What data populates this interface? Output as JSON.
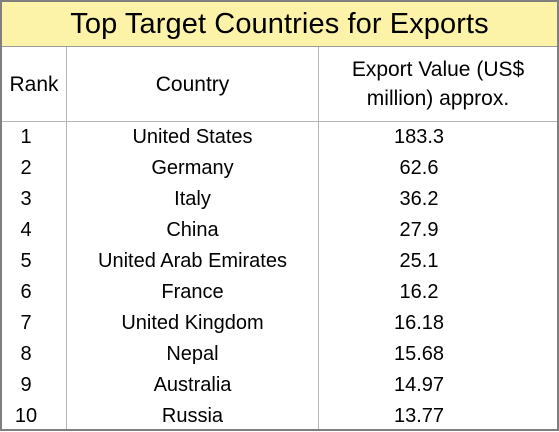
{
  "table": {
    "title": "Top Target Countries for Exports",
    "headers": {
      "rank": "Rank",
      "country": "Country",
      "value": "Export Value (US$ million) approx."
    },
    "rows": [
      {
        "rank": "1",
        "country": "United States",
        "value": "183.3"
      },
      {
        "rank": "2",
        "country": "Germany",
        "value": "62.6"
      },
      {
        "rank": "3",
        "country": "Italy",
        "value": "36.2"
      },
      {
        "rank": "4",
        "country": "China",
        "value": "27.9"
      },
      {
        "rank": "5",
        "country": "United Arab Emirates",
        "value": "25.1"
      },
      {
        "rank": "6",
        "country": "France",
        "value": "16.2"
      },
      {
        "rank": "7",
        "country": "United Kingdom",
        "value": "16.18"
      },
      {
        "rank": "8",
        "country": "Nepal",
        "value": "15.68"
      },
      {
        "rank": "9",
        "country": "Australia",
        "value": "14.97"
      },
      {
        "rank": "10",
        "country": "Russia",
        "value": "13.77"
      }
    ]
  },
  "colors": {
    "title_background": "#fcf3a8",
    "border": "#7f7f7f",
    "gridline": "#b5b5b5"
  }
}
